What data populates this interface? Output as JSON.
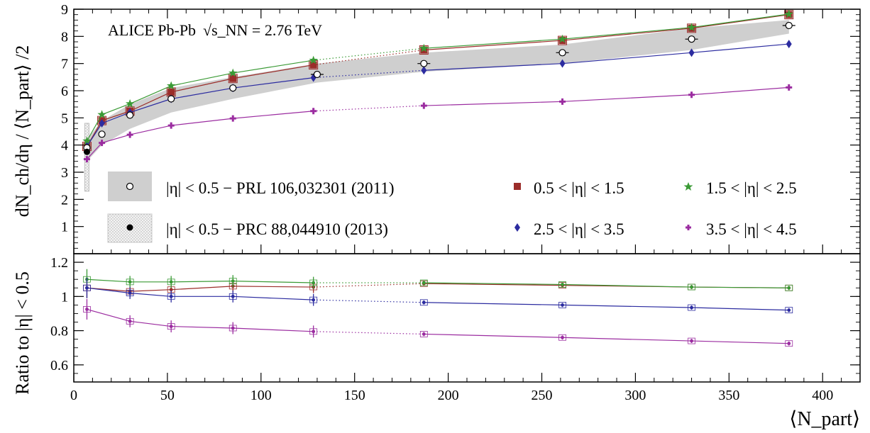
{
  "chart_data": [
    {
      "type": "line",
      "panel": "top",
      "title": "ALICE Pb-Pb",
      "title_energy": "√s_NN = 2.76 TeV",
      "ylabel": "dN_ch/dη / ⟨N_part⟩ /2",
      "ylim": [
        0,
        9
      ],
      "yticks": [
        "1",
        "2",
        "3",
        "4",
        "5",
        "6",
        "7",
        "8",
        "9"
      ],
      "grid": false,
      "series": [
        {
          "name": "|η| < 0.5 − PRL 106,032301 (2011)",
          "marker": "open-circle",
          "color": "#000000",
          "x": [
            7,
            15,
            30,
            52,
            85,
            130,
            187,
            261,
            330,
            382
          ],
          "y": [
            3.9,
            4.4,
            5.1,
            5.7,
            6.1,
            6.6,
            7.0,
            7.4,
            7.9,
            8.4
          ],
          "band_low": [
            3.4,
            4.0,
            4.6,
            5.2,
            5.7,
            6.3,
            6.7,
            7.0,
            7.5,
            8.1
          ],
          "band_high": [
            4.2,
            4.9,
            5.5,
            6.1,
            6.5,
            7.0,
            7.4,
            7.7,
            8.3,
            8.6
          ]
        },
        {
          "name": "|η| < 0.5 − PRC 88,044910 (2013)",
          "marker": "filled-circle",
          "color": "#000000",
          "x": [
            7
          ],
          "y": [
            3.75
          ],
          "syst_low": [
            2.3
          ],
          "syst_high": [
            4.8
          ]
        },
        {
          "name": "0.5 < |η| < 1.5",
          "marker": "square",
          "color": "#9b2d2a",
          "x": [
            7,
            15,
            30,
            52,
            85,
            128,
            187,
            261,
            330,
            382
          ],
          "y": [
            3.95,
            4.9,
            5.25,
            5.95,
            6.45,
            6.95,
            7.5,
            7.85,
            8.3,
            8.8
          ]
        },
        {
          "name": "1.5 < |η| < 2.5",
          "marker": "star",
          "color": "#3a9a35",
          "x": [
            7,
            15,
            30,
            52,
            85,
            128,
            187,
            261,
            330,
            382
          ],
          "y": [
            4.15,
            5.12,
            5.52,
            6.18,
            6.65,
            7.12,
            7.56,
            7.9,
            8.33,
            8.82
          ]
        },
        {
          "name": "2.5 < |η| < 3.5",
          "marker": "diamond",
          "color": "#2c2ca0",
          "x": [
            7,
            15,
            30,
            52,
            85,
            128,
            187,
            261,
            330,
            382
          ],
          "y": [
            3.95,
            4.8,
            5.2,
            5.7,
            6.1,
            6.48,
            6.75,
            7.0,
            7.4,
            7.72
          ]
        },
        {
          "name": "3.5 < |η| < 4.5",
          "marker": "plus",
          "color": "#9b2ca0",
          "x": [
            7,
            15,
            30,
            52,
            85,
            128,
            187,
            261,
            330,
            382
          ],
          "y": [
            3.48,
            4.08,
            4.38,
            4.72,
            4.98,
            5.25,
            5.45,
            5.6,
            5.85,
            6.12
          ]
        }
      ]
    },
    {
      "type": "line",
      "panel": "bottom",
      "ylabel": "Ratio to |η| < 0.5",
      "xlabel": "⟨N_part⟩",
      "xlim": [
        0,
        420
      ],
      "ylim": [
        0.5,
        1.25
      ],
      "xticks": [
        "0",
        "50",
        "100",
        "150",
        "200",
        "250",
        "300",
        "350",
        "400"
      ],
      "yticks": [
        "0.6",
        "0.8",
        "1",
        "1.2"
      ],
      "series": [
        {
          "name": "0.5 < |η| < 1.5",
          "color": "#9b2d2a",
          "x": [
            7,
            30,
            52,
            85,
            128,
            187,
            261,
            330,
            382
          ],
          "y": [
            1.05,
            1.03,
            1.04,
            1.06,
            1.055,
            1.075,
            1.065,
            1.055,
            1.05
          ]
        },
        {
          "name": "1.5 < |η| < 2.5",
          "color": "#3a9a35",
          "x": [
            7,
            30,
            52,
            85,
            128,
            187,
            261,
            330,
            382
          ],
          "y": [
            1.1,
            1.085,
            1.085,
            1.09,
            1.08,
            1.08,
            1.07,
            1.055,
            1.05
          ]
        },
        {
          "name": "2.5 < |η| < 3.5",
          "color": "#2c2ca0",
          "x": [
            7,
            30,
            52,
            85,
            128,
            187,
            261,
            330,
            382
          ],
          "y": [
            1.05,
            1.02,
            1.0,
            1.0,
            0.98,
            0.965,
            0.95,
            0.935,
            0.92
          ]
        },
        {
          "name": "3.5 < |η| < 4.5",
          "color": "#9b2ca0",
          "x": [
            7,
            30,
            52,
            85,
            128,
            187,
            261,
            330,
            382
          ],
          "y": [
            0.925,
            0.855,
            0.825,
            0.815,
            0.795,
            0.78,
            0.76,
            0.74,
            0.725
          ]
        }
      ]
    }
  ]
}
